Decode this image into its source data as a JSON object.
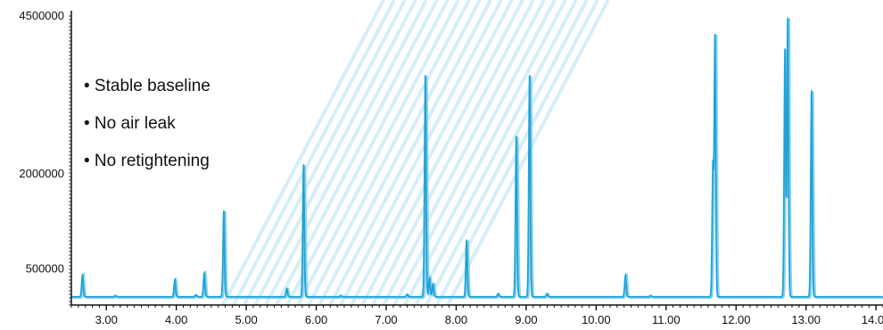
{
  "chart_data": {
    "type": "line",
    "title": "",
    "xlabel": "",
    "ylabel": "",
    "xlim": [
      2.5,
      14.1
    ],
    "ylim": [
      0,
      4500000
    ],
    "x_ticks": [
      3.0,
      4.0,
      5.0,
      6.0,
      7.0,
      8.0,
      9.0,
      10.0,
      11.0,
      12.0,
      13.0,
      14.0
    ],
    "x_tick_labels": [
      "3.00",
      "4.00",
      "5.00",
      "6.00",
      "7.00",
      "8.00",
      "9.00",
      "10.00",
      "11.00",
      "12.00",
      "13.00",
      "14.00"
    ],
    "y_ticks": [
      4500000,
      2000000,
      500000
    ],
    "y_tick_labels": [
      "4500000",
      "2000000",
      "500000"
    ],
    "grid": false,
    "legend": "none",
    "series": [
      {
        "color": "#1ea3d8",
        "baseline": 60000,
        "peaks": [
          {
            "x": 2.66,
            "y": 400000
          },
          {
            "x": 3.13,
            "y": 80000
          },
          {
            "x": 3.98,
            "y": 330000
          },
          {
            "x": 4.28,
            "y": 90000
          },
          {
            "x": 4.4,
            "y": 430000
          },
          {
            "x": 4.68,
            "y": 1420000
          },
          {
            "x": 5.58,
            "y": 190000
          },
          {
            "x": 5.82,
            "y": 2150000
          },
          {
            "x": 6.35,
            "y": 80000
          },
          {
            "x": 7.3,
            "y": 100000
          },
          {
            "x": 7.56,
            "y": 3560000
          },
          {
            "x": 7.62,
            "y": 350000
          },
          {
            "x": 7.67,
            "y": 260000
          },
          {
            "x": 8.15,
            "y": 960000
          },
          {
            "x": 8.6,
            "y": 110000
          },
          {
            "x": 8.86,
            "y": 2600000
          },
          {
            "x": 9.05,
            "y": 3560000
          },
          {
            "x": 9.3,
            "y": 110000
          },
          {
            "x": 10.42,
            "y": 400000
          },
          {
            "x": 10.78,
            "y": 80000
          },
          {
            "x": 11.67,
            "y": 2050000
          },
          {
            "x": 11.7,
            "y": 4180000
          },
          {
            "x": 12.7,
            "y": 3970000
          },
          {
            "x": 12.74,
            "y": 4470000
          },
          {
            "x": 13.08,
            "y": 3320000
          }
        ]
      }
    ],
    "annotations": [
      "• Stable baseline",
      "• No air leak",
      "• No retightening"
    ]
  },
  "colors": {
    "trace": "#1ea3d8",
    "trace_echo": "#8fd2ee",
    "watermark": "#d6eef9",
    "axis": "#111111"
  }
}
